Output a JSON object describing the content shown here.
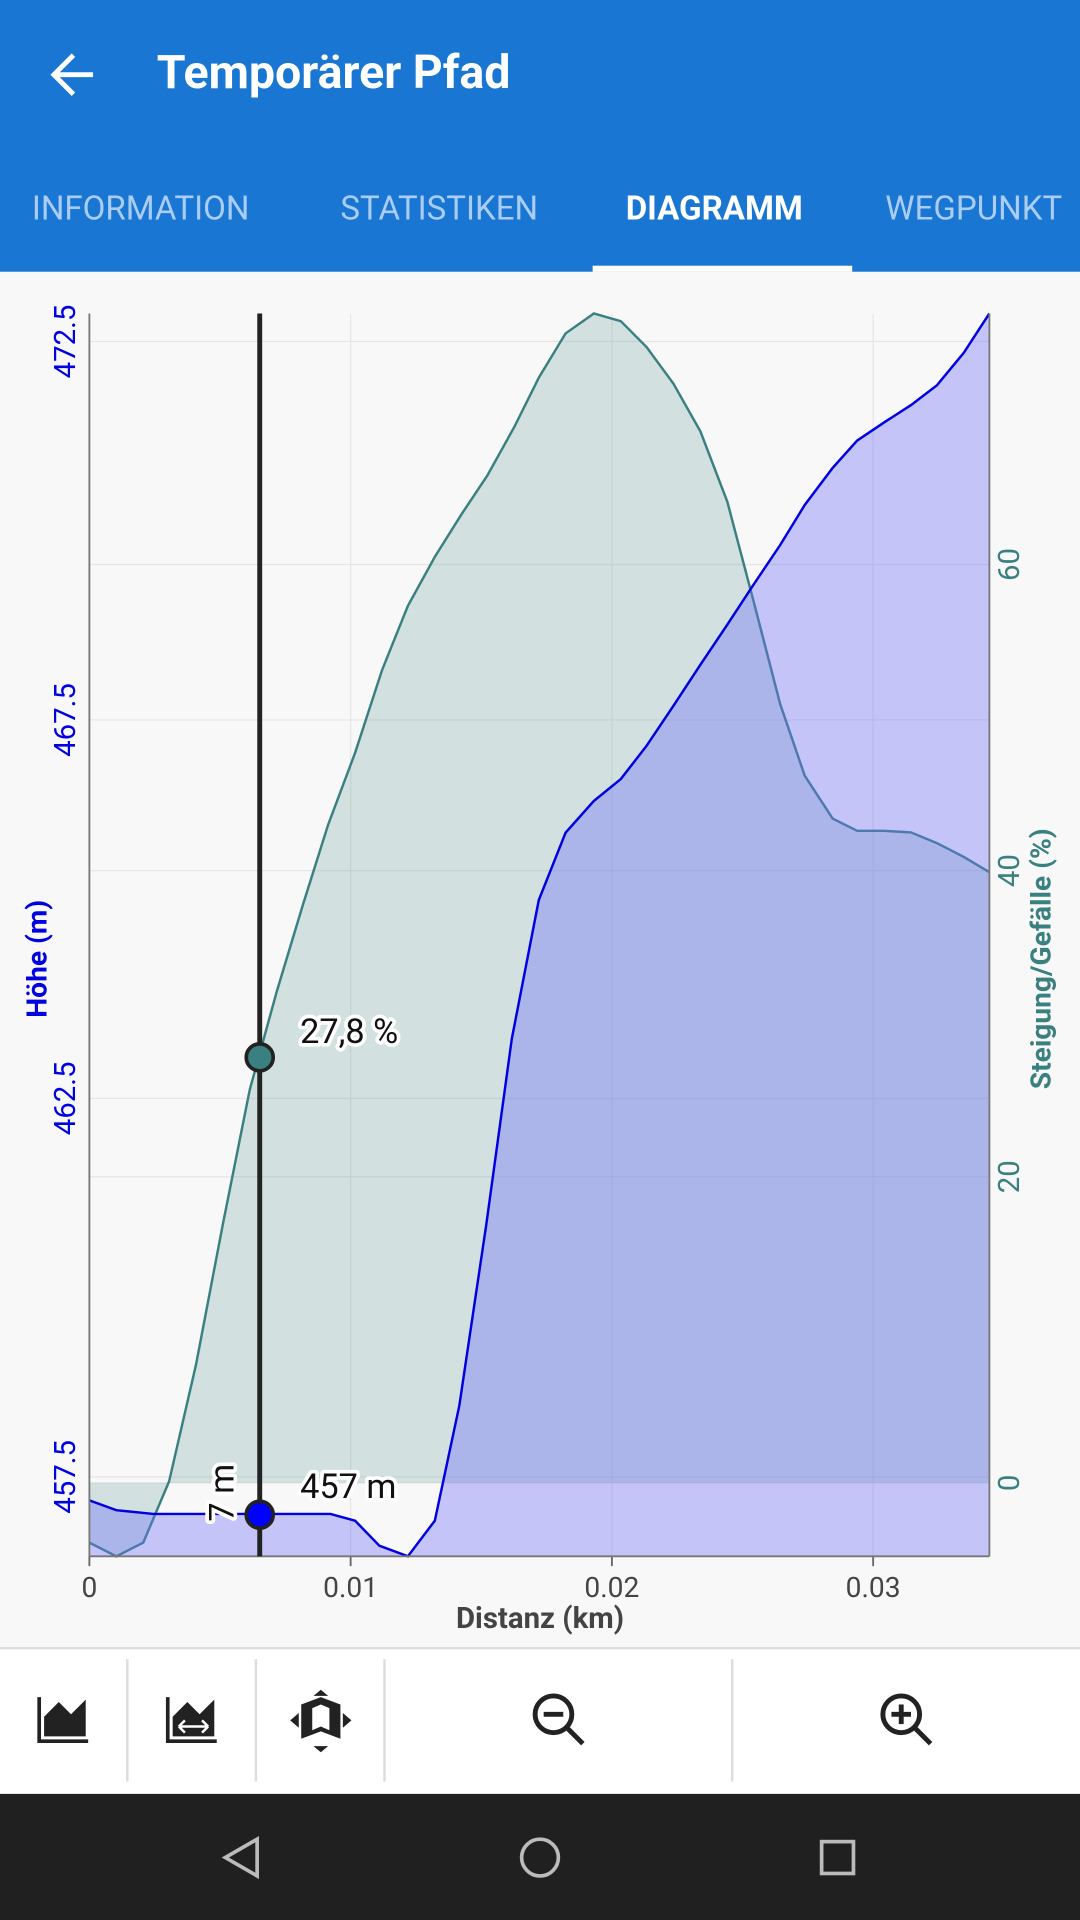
{
  "app_bar": {
    "title": "Temporärer Pfad"
  },
  "tabs": [
    "INFORMATION",
    "STATISTIKEN",
    "DIAGRAMM",
    "WEGPUNKT"
  ],
  "selected_tab": 2,
  "chart_data": {
    "type": "area",
    "x_label": "Distanz (km)",
    "y_label": "Höhe (m)",
    "y2_label": "Steigung/Gefälle (%)",
    "xlim": [
      0,
      0.03445
    ],
    "xticks": [
      0,
      0.01,
      0.02,
      0.03
    ],
    "ylim": [
      456.45,
      472.87
    ],
    "yticks": [
      457.5,
      462.5,
      467.5,
      472.5
    ],
    "y2lim": [
      -4.8,
      76.4
    ],
    "y2ticks": [
      0,
      20,
      40,
      60
    ],
    "grid": true,
    "series": [
      {
        "name": "Höhe (m)",
        "color": "#0000e0",
        "fill": "rgba(110,110,250,0.38)",
        "baseline": "bottom",
        "x": [
          0,
          0.00103,
          0.00244,
          0.00923,
          0.01017,
          0.0111,
          0.01219,
          0.01322,
          0.01416,
          0.01519,
          0.01617,
          0.0172,
          0.01823,
          0.01931,
          0.02034,
          0.02133,
          0.02236,
          0.02339,
          0.02442,
          0.02541,
          0.02644,
          0.02738,
          0.02845,
          0.02939,
          0.03042,
          0.03145,
          0.03244,
          0.03347,
          0.03445
        ],
        "values": [
          457.19,
          457.06,
          457.01,
          457.01,
          456.92,
          456.59,
          456.45,
          456.92,
          458.44,
          460.83,
          463.29,
          465.12,
          466.01,
          466.43,
          466.72,
          467.16,
          467.69,
          468.23,
          468.76,
          469.28,
          469.81,
          470.34,
          470.83,
          471.19,
          471.43,
          471.66,
          471.92,
          472.35,
          472.87
        ]
      },
      {
        "name": "Steigung/Gefälle (%)",
        "color": "#3a8080",
        "fill": "rgba(58,128,128,0.2)",
        "baseline": "zero",
        "axis": "y2",
        "x": [
          0,
          0.00103,
          0.00206,
          0.00305,
          0.00408,
          0.00511,
          0.00614,
          0.00717,
          0.00816,
          0.00914,
          0.01017,
          0.0112,
          0.01219,
          0.01322,
          0.01425,
          0.01523,
          0.01627,
          0.0172,
          0.01823,
          0.01931,
          0.02034,
          0.02133,
          0.02236,
          0.02339,
          0.02442,
          0.02541,
          0.02644,
          0.02738,
          0.02845,
          0.02939,
          0.03042,
          0.03145,
          0.03244,
          0.03347,
          0.03445
        ],
        "values": [
          -3.9,
          -4.8,
          -3.9,
          0.1,
          7.7,
          16.9,
          25.7,
          32.1,
          37.7,
          43.0,
          47.7,
          53.1,
          57.3,
          60.5,
          63.3,
          65.8,
          69.0,
          72.2,
          75.1,
          76.4,
          75.9,
          74.2,
          71.8,
          68.7,
          64.1,
          57.7,
          50.9,
          46.2,
          43.4,
          42.6,
          42.6,
          42.5,
          41.8,
          40.9,
          39.9
        ]
      }
    ],
    "cursor": {
      "x": 0.00652,
      "grade": 27.8,
      "grade_label": "27,8 %",
      "elevation": 457,
      "elevation_label": "457 m",
      "side_label": "7 m"
    }
  }
}
